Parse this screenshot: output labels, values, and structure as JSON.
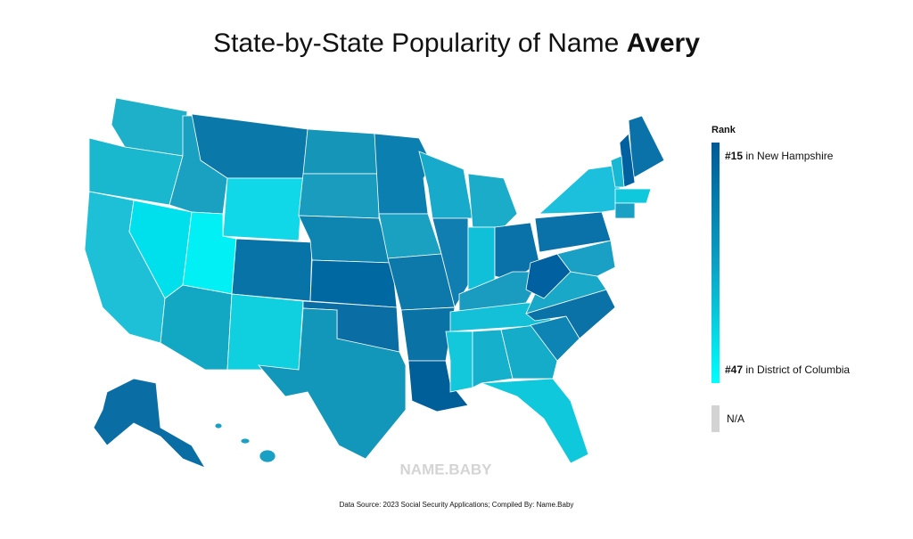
{
  "header": {
    "title": "State-by-State Popularity of Name",
    "name": "Avery"
  },
  "legend": {
    "title": "Rank",
    "top": {
      "rank": "#15",
      "place": "in New Hampshire"
    },
    "bottom": {
      "rank": "#47",
      "place": "in District of Columbia"
    },
    "na": "N/A"
  },
  "watermark": "NAME.BABY",
  "source": "Data Source: 2023 Social Security Applications; Compiled By: Name.Baby"
}
